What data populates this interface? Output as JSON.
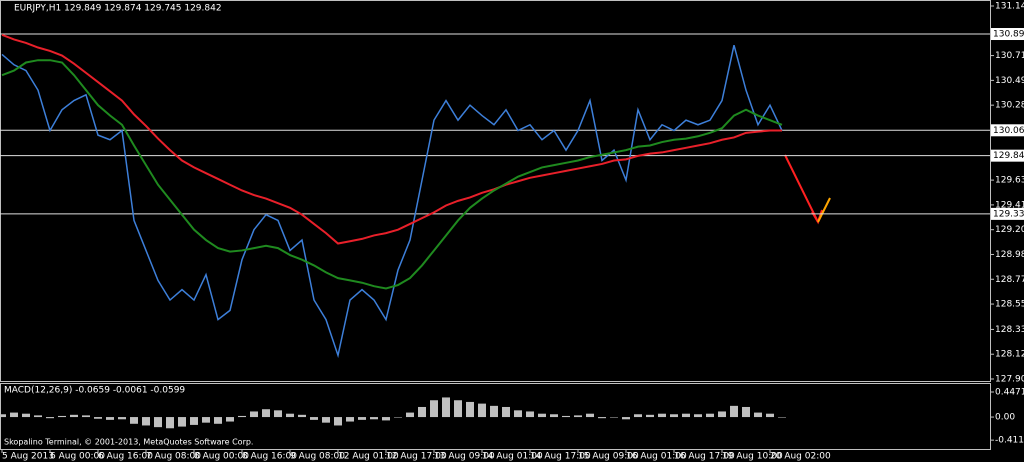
{
  "chart_data": [
    {
      "type": "line",
      "title": "EURJPY,H1  129.849 129.874 129.745 129.842",
      "categories": [
        "5 Aug 2013",
        null,
        null,
        null,
        "6 Aug 00:00",
        null,
        null,
        null,
        "6 Aug 16:00",
        null,
        null,
        null,
        "7 Aug 08:00",
        null,
        null,
        null,
        "8 Aug 00:00",
        null,
        null,
        null,
        "8 Aug 16:00",
        null,
        null,
        null,
        "9 Aug 08:00",
        null,
        null,
        null,
        "12 Aug 01:00",
        null,
        null,
        null,
        "12 Aug 17:00",
        null,
        null,
        null,
        "13 Aug 09:00",
        null,
        null,
        null,
        "14 Aug 01:00",
        null,
        null,
        null,
        "14 Aug 17:00",
        null,
        null,
        null,
        "15 Aug 09:00",
        null,
        null,
        null,
        "16 Aug 01:00",
        null,
        null,
        null,
        "16 Aug 17:00",
        null,
        null,
        null,
        "19 Aug 10:00",
        null,
        null,
        null,
        "20 Aug 02:00",
        null
      ],
      "series": [
        {
          "color": "#3d7fd9",
          "values": [
            130.72,
            130.63,
            130.58,
            130.41,
            130.06,
            130.24,
            130.32,
            130.37,
            130.02,
            129.98,
            130.06,
            129.28,
            129.02,
            128.76,
            128.59,
            128.68,
            128.59,
            128.81,
            128.42,
            128.5,
            128.94,
            129.2,
            129.33,
            129.28,
            129.02,
            129.11,
            128.59,
            128.42,
            128.11,
            128.59,
            128.68,
            128.59,
            128.42,
            128.85,
            129.11,
            129.63,
            130.15,
            130.32,
            130.15,
            130.28,
            130.19,
            130.11,
            130.24,
            130.06,
            130.11,
            129.98,
            130.06,
            129.89,
            130.06,
            130.32,
            129.8,
            129.89,
            129.63,
            130.24,
            129.98,
            130.11,
            130.06,
            130.15,
            130.11,
            130.15,
            130.32,
            130.8,
            130.41,
            130.11,
            130.28,
            130.06
          ]
        },
        {
          "color": "#e8202a",
          "values": [
            130.89,
            130.85,
            130.82,
            130.78,
            130.75,
            130.71,
            130.64,
            130.56,
            130.48,
            130.4,
            130.32,
            130.2,
            130.1,
            129.99,
            129.89,
            129.8,
            129.74,
            129.69,
            129.64,
            129.59,
            129.54,
            129.5,
            129.47,
            129.43,
            129.39,
            129.33,
            129.25,
            129.17,
            129.08,
            129.1,
            129.12,
            129.15,
            129.17,
            129.2,
            129.25,
            129.3,
            129.35,
            129.41,
            129.45,
            129.48,
            129.52,
            129.55,
            129.59,
            129.62,
            129.65,
            129.67,
            129.69,
            129.71,
            129.73,
            129.75,
            129.77,
            129.8,
            129.81,
            129.84,
            129.86,
            129.87,
            129.89,
            129.91,
            129.93,
            129.95,
            129.98,
            130.0,
            130.04,
            130.05,
            130.06,
            130.06
          ]
        },
        {
          "color": "#1f8a1f",
          "values": [
            130.54,
            130.58,
            130.65,
            130.67,
            130.67,
            130.65,
            130.54,
            130.41,
            130.28,
            130.19,
            130.11,
            129.93,
            129.76,
            129.59,
            129.46,
            129.33,
            129.2,
            129.11,
            129.04,
            129.01,
            129.02,
            129.04,
            129.06,
            129.04,
            128.98,
            128.94,
            128.89,
            128.83,
            128.78,
            128.76,
            128.74,
            128.71,
            128.69,
            128.72,
            128.78,
            128.89,
            129.02,
            129.15,
            129.28,
            129.39,
            129.47,
            129.54,
            129.6,
            129.66,
            129.7,
            129.74,
            129.76,
            129.78,
            129.8,
            129.83,
            129.85,
            129.87,
            129.89,
            129.92,
            129.93,
            129.96,
            129.98,
            129.99,
            130.01,
            130.04,
            130.08,
            130.19,
            130.24,
            130.19,
            130.15,
            130.11
          ]
        }
      ],
      "ylim": [
        127.905,
        131.14
      ],
      "yticks": [
        {
          "value": 131.14,
          "label": "131.140"
        },
        {
          "value": 130.71,
          "label": "130.710"
        },
        130.495,
        {
          "value": 130.28,
          "label": "130.280"
        },
        {
          "value": 129.63,
          "label": "129.630"
        },
        129.415,
        {
          "value": 129.2,
          "label": "129.200"
        },
        128.985,
        {
          "value": 128.77,
          "label": "128.770"
        },
        128.555,
        128.335,
        {
          "value": 128.12,
          "label": "128.120"
        },
        127.905
      ],
      "levels": [
        {
          "value": 130.897,
          "label": "130.897"
        },
        {
          "value": 130.062,
          "label": "130.062"
        },
        {
          "value": 129.842,
          "label": "129.842"
        },
        {
          "value": 129.337,
          "label": "129.337"
        }
      ]
    },
    {
      "type": "bar",
      "title": "MACD(12,26,9) -0.0659 -0.0061 -0.0599",
      "annotation": "Skopalino Terminal, © 2001-2013, MetaQuotes Software Corp.",
      "color": "#c0c0c0",
      "values": [
        0.05,
        0.08,
        0.06,
        0.03,
        -0.02,
        0.02,
        0.04,
        0.03,
        -0.03,
        -0.05,
        -0.04,
        -0.12,
        -0.15,
        -0.18,
        -0.2,
        -0.17,
        -0.14,
        -0.1,
        -0.12,
        -0.08,
        0.02,
        0.1,
        0.14,
        0.12,
        0.06,
        0.04,
        -0.05,
        -0.1,
        -0.15,
        -0.08,
        -0.05,
        -0.04,
        -0.06,
        0.0,
        0.08,
        0.18,
        0.3,
        0.35,
        0.3,
        0.27,
        0.24,
        0.2,
        0.18,
        0.12,
        0.1,
        0.06,
        0.05,
        0.02,
        0.03,
        0.06,
        -0.02,
        0.0,
        -0.04,
        0.05,
        0.04,
        0.06,
        0.05,
        0.06,
        0.05,
        0.06,
        0.1,
        0.2,
        0.18,
        0.08,
        0.06,
        0.0
      ],
      "ylim": [
        -0.57,
        0.59
      ],
      "yticks": [
        0.4471,
        {
          "value": 0,
          "label": "0.00"
        },
        -0.4118
      ]
    }
  ]
}
